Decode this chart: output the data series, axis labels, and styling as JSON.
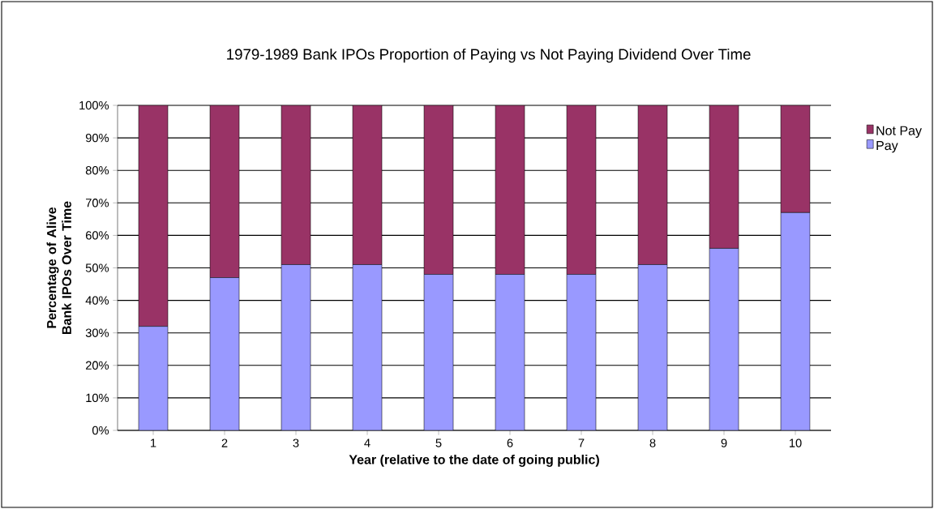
{
  "chart_data": {
    "type": "bar",
    "title": "1979-1989 Bank IPOs Proportion of  Paying vs Not Paying Dividend Over Time",
    "xlabel": "Year (relative to the date of going public)",
    "ylabel": "Percentage of Alive Bank IPOs Over Time",
    "categories": [
      "1",
      "2",
      "3",
      "4",
      "5",
      "6",
      "7",
      "8",
      "9",
      "10"
    ],
    "stacked": true,
    "series": [
      {
        "name": "Pay",
        "color": "#9999ff",
        "values": [
          32,
          47,
          51,
          51,
          48,
          48,
          48,
          51,
          56,
          67
        ]
      },
      {
        "name": "Not Pay",
        "color": "#993366",
        "values": [
          68,
          53,
          49,
          49,
          52,
          52,
          52,
          49,
          44,
          33
        ]
      }
    ],
    "ylim": [
      0,
      100
    ],
    "yticks": [
      {
        "value": 0,
        "label": "0%"
      },
      {
        "value": 10,
        "label": "10%"
      },
      {
        "value": 20,
        "label": "20%"
      },
      {
        "value": 30,
        "label": "30%"
      },
      {
        "value": 40,
        "label": "40%"
      },
      {
        "value": 50,
        "label": "50%"
      },
      {
        "value": 60,
        "label": "60%"
      },
      {
        "value": 70,
        "label": "70%"
      },
      {
        "value": 80,
        "label": "80%"
      },
      {
        "value": 90,
        "label": "90%"
      },
      {
        "value": 100,
        "label": "100%"
      }
    ],
    "grid": "y",
    "legend": "right"
  }
}
